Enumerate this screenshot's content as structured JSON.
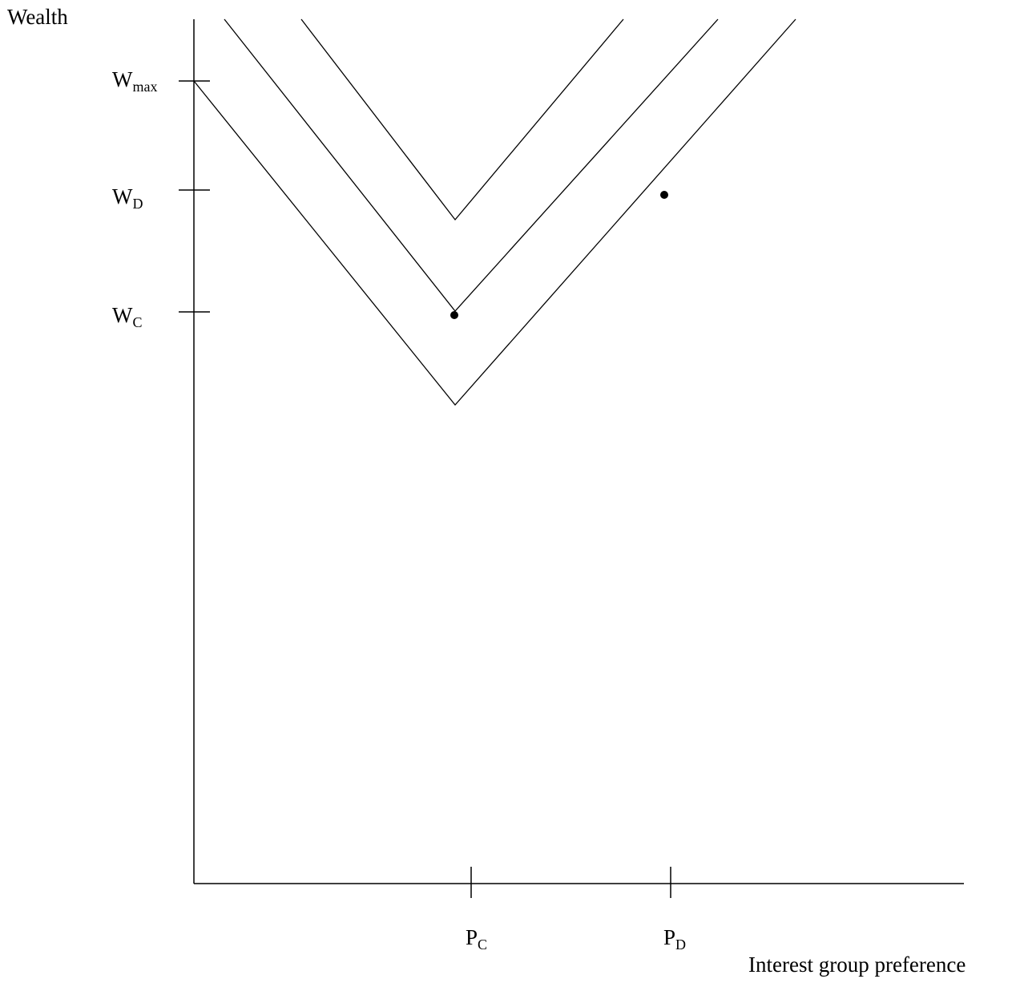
{
  "diagram": {
    "y_axis_title": "Wealth",
    "x_axis_title": "Interest group preference",
    "y_ticks": [
      {
        "id": "wmax",
        "main": "W",
        "sub": "max"
      },
      {
        "id": "wd",
        "main": "W",
        "sub": "D"
      },
      {
        "id": "wc",
        "main": "W",
        "sub": "C"
      }
    ],
    "x_ticks": [
      {
        "id": "pc",
        "main": "P",
        "sub": "C"
      },
      {
        "id": "pd",
        "main": "P",
        "sub": "D"
      }
    ],
    "curves": [
      {
        "name": "upper-v-curve"
      },
      {
        "name": "middle-v-curve"
      },
      {
        "name": "lower-v-curve"
      }
    ],
    "points": [
      {
        "name": "point-c"
      },
      {
        "name": "point-d"
      }
    ],
    "line_color": "#000000"
  }
}
